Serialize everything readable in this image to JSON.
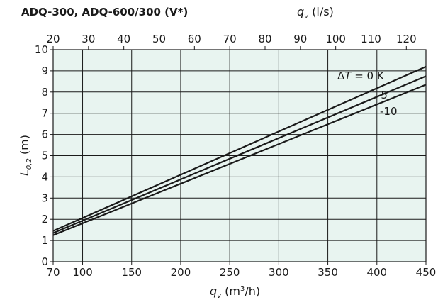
{
  "chart_data": {
    "type": "line",
    "title": "ADQ-300, ADQ-600/300 (V*)",
    "xlabel_symbol": "q",
    "xlabel_sub": "v",
    "xlabel_unit_pre": " (m",
    "xlabel_unit_sup": "3",
    "xlabel_unit_post": "/h)",
    "x2label_symbol": "q",
    "x2label_sub": "v",
    "x2label_unit": " (l/s)",
    "ylabel_symbol": "L",
    "ylabel_sub": "0,2",
    "ylabel_unit": " (m)",
    "xlim": [
      70,
      450
    ],
    "ylim": [
      0,
      10
    ],
    "x2lim": [
      20,
      125
    ],
    "xticks": [
      70,
      100,
      150,
      200,
      250,
      300,
      350,
      400,
      450
    ],
    "yticks": [
      0,
      1,
      2,
      3,
      4,
      5,
      6,
      7,
      8,
      9,
      10
    ],
    "x2ticks": [
      20,
      30,
      40,
      50,
      60,
      70,
      80,
      90,
      100,
      110,
      120
    ],
    "grid": true,
    "background": "#e8f4f0",
    "line_color": "#1a1a1a",
    "series": [
      {
        "name": "ΔT = 0 K",
        "name_delta": "Δ",
        "name_T": "T",
        "name_rest": " = 0 K",
        "x": [
          70,
          450
        ],
        "y": [
          1.45,
          9.2
        ]
      },
      {
        "name": "-5",
        "x": [
          70,
          450
        ],
        "y": [
          1.35,
          8.75
        ]
      },
      {
        "name": "-10",
        "x": [
          70,
          450
        ],
        "y": [
          1.25,
          8.35
        ]
      }
    ]
  }
}
